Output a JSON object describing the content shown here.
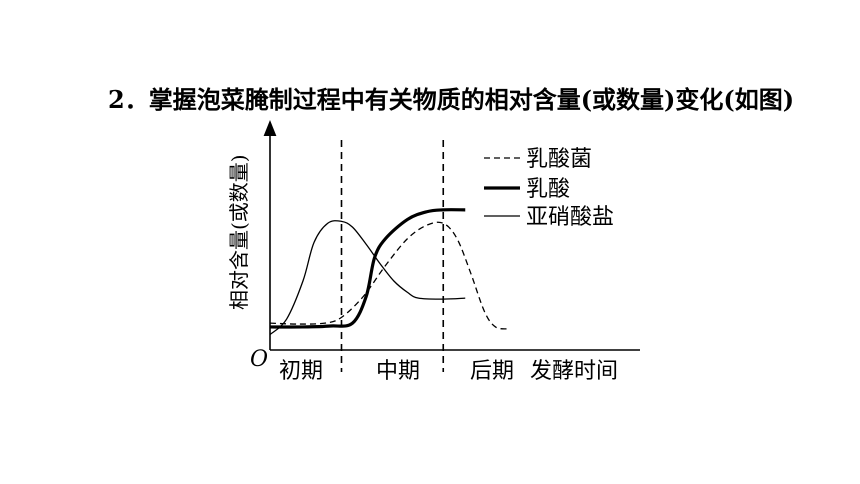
{
  "heading": {
    "number": "2．",
    "text": "掌握泡菜腌制过程中有关物质的相对含量(或数量)变化(如图)"
  },
  "chart_data": {
    "type": "line",
    "ylabel": "相对含量(或数量)",
    "xlabel": "发酵时间",
    "origin_label": "O",
    "stages": [
      "初期",
      "中期",
      "后期"
    ],
    "grid": false,
    "legend_position": "top-right",
    "x_range": [
      0,
      100
    ],
    "y_range": [
      0,
      100
    ],
    "stage_dividers": [
      26,
      63
    ],
    "series": [
      {
        "name": "乳酸菌",
        "style": "dashed",
        "points": [
          [
            0,
            14
          ],
          [
            10,
            13.5
          ],
          [
            20,
            14
          ],
          [
            26,
            17
          ],
          [
            34,
            28
          ],
          [
            42,
            44
          ],
          [
            50,
            58
          ],
          [
            57,
            65
          ],
          [
            63,
            66
          ],
          [
            68,
            58
          ],
          [
            73,
            40
          ],
          [
            78,
            20
          ],
          [
            82,
            12
          ],
          [
            87,
            11
          ]
        ]
      },
      {
        "name": "乳酸",
        "style": "bold",
        "points": [
          [
            0,
            12
          ],
          [
            12,
            12
          ],
          [
            22,
            12.5
          ],
          [
            30,
            14
          ],
          [
            35,
            28
          ],
          [
            38,
            48
          ],
          [
            42,
            58
          ],
          [
            50,
            68
          ],
          [
            57,
            72
          ],
          [
            63,
            73
          ],
          [
            71,
            73
          ]
        ]
      },
      {
        "name": "亚硝酸盐",
        "style": "thin",
        "points": [
          [
            0,
            8
          ],
          [
            6,
            16
          ],
          [
            12,
            36
          ],
          [
            16,
            56
          ],
          [
            21,
            66
          ],
          [
            26,
            67
          ],
          [
            30,
            64
          ],
          [
            35,
            55
          ],
          [
            40,
            45
          ],
          [
            45,
            36
          ],
          [
            50,
            30
          ],
          [
            54,
            27
          ],
          [
            63,
            26.5
          ],
          [
            71,
            27
          ]
        ]
      }
    ]
  }
}
